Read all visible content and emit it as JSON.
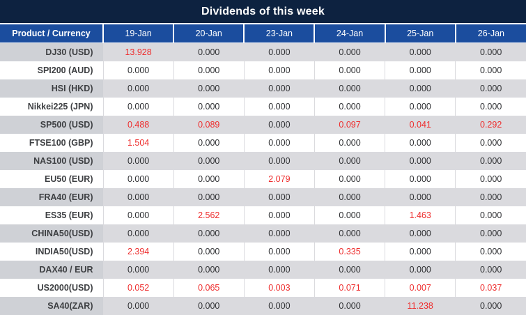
{
  "title": "Dividends of this week",
  "colors": {
    "title_bg": "#0d2240",
    "header_bg": "#1b4d9e",
    "row_alt_bg": "#dadade",
    "product_alt_bg": "#cfd1d6",
    "value_text": "#2f3033",
    "nonzero_text": "#ee2e2e"
  },
  "table": {
    "product_header": "Product / Currency",
    "date_columns": [
      "19-Jan",
      "20-Jan",
      "23-Jan",
      "24-Jan",
      "25-Jan",
      "26-Jan"
    ],
    "zero_value": "0.000",
    "rows": [
      {
        "product": "DJ30 (USD)",
        "values": [
          "13.928",
          "0.000",
          "0.000",
          "0.000",
          "0.000",
          "0.000"
        ]
      },
      {
        "product": "SPI200 (AUD)",
        "values": [
          "0.000",
          "0.000",
          "0.000",
          "0.000",
          "0.000",
          "0.000"
        ]
      },
      {
        "product": "HSI (HKD)",
        "values": [
          "0.000",
          "0.000",
          "0.000",
          "0.000",
          "0.000",
          "0.000"
        ]
      },
      {
        "product": "Nikkei225 (JPN)",
        "values": [
          "0.000",
          "0.000",
          "0.000",
          "0.000",
          "0.000",
          "0.000"
        ]
      },
      {
        "product": "SP500 (USD)",
        "values": [
          "0.488",
          "0.089",
          "0.000",
          "0.097",
          "0.041",
          "0.292"
        ]
      },
      {
        "product": "FTSE100 (GBP)",
        "values": [
          "1.504",
          "0.000",
          "0.000",
          "0.000",
          "0.000",
          "0.000"
        ]
      },
      {
        "product": "NAS100 (USD)",
        "values": [
          "0.000",
          "0.000",
          "0.000",
          "0.000",
          "0.000",
          "0.000"
        ]
      },
      {
        "product": "EU50 (EUR)",
        "values": [
          "0.000",
          "0.000",
          "2.079",
          "0.000",
          "0.000",
          "0.000"
        ]
      },
      {
        "product": "FRA40 (EUR)",
        "values": [
          "0.000",
          "0.000",
          "0.000",
          "0.000",
          "0.000",
          "0.000"
        ]
      },
      {
        "product": "ES35 (EUR)",
        "values": [
          "0.000",
          "2.562",
          "0.000",
          "0.000",
          "1.463",
          "0.000"
        ]
      },
      {
        "product": "CHINA50(USD)",
        "values": [
          "0.000",
          "0.000",
          "0.000",
          "0.000",
          "0.000",
          "0.000"
        ]
      },
      {
        "product": "INDIA50(USD)",
        "values": [
          "2.394",
          "0.000",
          "0.000",
          "0.335",
          "0.000",
          "0.000"
        ]
      },
      {
        "product": "DAX40 / EUR",
        "values": [
          "0.000",
          "0.000",
          "0.000",
          "0.000",
          "0.000",
          "0.000"
        ]
      },
      {
        "product": "US2000(USD)",
        "values": [
          "0.052",
          "0.065",
          "0.003",
          "0.071",
          "0.007",
          "0.037"
        ]
      },
      {
        "product": "SA40(ZAR)",
        "values": [
          "0.000",
          "0.000",
          "0.000",
          "0.000",
          "11.238",
          "0.000"
        ]
      }
    ]
  }
}
